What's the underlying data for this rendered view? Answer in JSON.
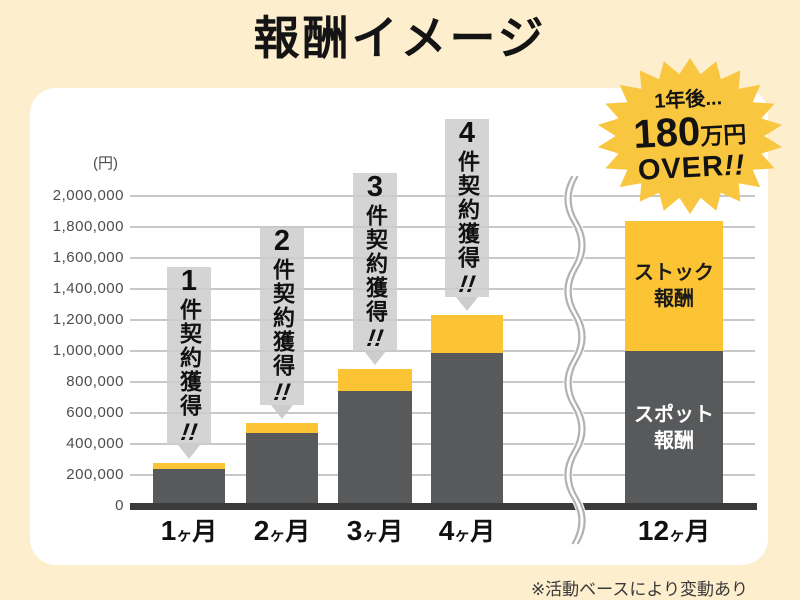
{
  "page": {
    "title": "報酬イメージ",
    "footnote": "※活動ベースにより変動あり",
    "background_color": "#fdeecd"
  },
  "badge": {
    "line1": "1年後...",
    "amount": "180",
    "unit": "万円",
    "line3": "OVER!!",
    "color": "#f9c640"
  },
  "chart_data": {
    "type": "bar",
    "stacked": true,
    "title": "報酬イメージ",
    "unit_label": "(円)",
    "categories": [
      "1ヶ月",
      "2ヶ月",
      "3ヶ月",
      "4ヶ月",
      "12ヶ月"
    ],
    "series": [
      {
        "name": "スポット報酬",
        "color": "#58595b",
        "values": [
          240000,
          470000,
          740000,
          990000,
          1000000
        ]
      },
      {
        "name": "ストック報酬",
        "color": "#fcc434",
        "values": [
          40000,
          65000,
          145000,
          240000,
          840000
        ]
      }
    ],
    "totals": [
      280000,
      535000,
      885000,
      1230000,
      1840000
    ],
    "ylim": [
      0,
      2000000
    ],
    "y_tick_values": [
      0,
      200000,
      400000,
      600000,
      800000,
      1000000,
      1200000,
      1400000,
      1600000,
      1800000,
      2000000
    ],
    "y_tick_labels": [
      "0",
      "200,000",
      "400,000",
      "600,000",
      "800,000",
      "1,000,000",
      "1,200,000",
      "1,400,000",
      "1,600,000",
      "1,800,000",
      "2,000,000"
    ],
    "grid": true,
    "legend_position": "inside-last-bar",
    "axis_break_after_category": "4ヶ月",
    "annotations": [
      "1件契約獲得!!",
      "2件契約獲得!!",
      "3件契約獲得!!",
      "4件契約獲得!!"
    ]
  },
  "callouts": [
    {
      "num": "1",
      "text": "件契約獲得",
      "bang": "!!"
    },
    {
      "num": "2",
      "text": "件契約獲得",
      "bang": "!!"
    },
    {
      "num": "3",
      "text": "件契約獲得",
      "bang": "!!"
    },
    {
      "num": "4",
      "text": "件契約獲得",
      "bang": "!!"
    }
  ],
  "bar_labels": {
    "stock": "ストック報酬",
    "spot": "スポット報酬"
  }
}
